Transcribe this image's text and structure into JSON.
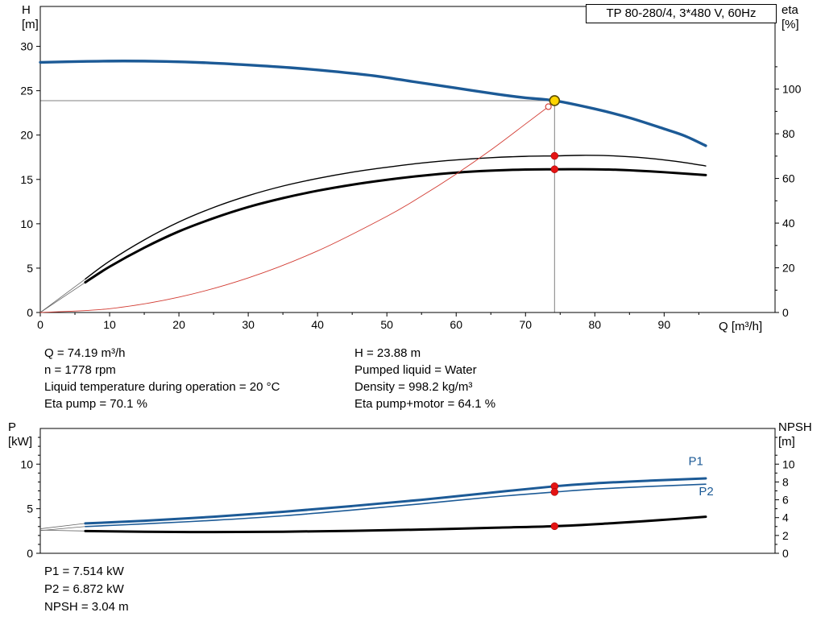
{
  "top_chart": {
    "title": "TP 80-280/4, 3*480 V, 60Hz",
    "y_left_title": "H",
    "y_left_unit": "[m]",
    "y_right_title": "eta",
    "y_right_unit": "[%]",
    "x_axis_label": "Q [m³/h]"
  },
  "bottom_chart": {
    "y_left_title": "P",
    "y_left_unit": "[kW]",
    "y_right_title": "NPSH",
    "y_right_unit": "[m]"
  },
  "info_top": {
    "left": [
      "Q = 74.19 m³/h",
      "n = 1778 rpm",
      "Liquid temperature during operation = 20 °C",
      "Eta pump = 70.1 %"
    ],
    "right": [
      "H = 23.88 m",
      "Pumped liquid = Water",
      "Density = 998.2 kg/m³",
      "Eta pump+motor = 64.1 %"
    ]
  },
  "info_bottom": [
    "P1 = 7.514 kW",
    "P2 = 6.872 kW",
    "NPSH = 3.04 m"
  ],
  "colors": {
    "curve_blue": "#1c5a96",
    "curve_black": "#000000",
    "system_red": "#d23b32",
    "marker_red": "#e41414",
    "duty_yellow": "#ffd400",
    "guide_gray": "#808080"
  },
  "chart_data": [
    {
      "type": "line",
      "title": "TP 80-280/4, 3*480 V, 60Hz",
      "x": {
        "label": "Q [m³/h]",
        "min": 0,
        "max": 106,
        "major_ticks": [
          0,
          10,
          20,
          30,
          40,
          50,
          60,
          70,
          80,
          90
        ],
        "minor_ticks": [
          5,
          15,
          25,
          35,
          45,
          55,
          65,
          75,
          85,
          95
        ]
      },
      "y_left": {
        "label": "H [m]",
        "min": 0,
        "max": 34.5,
        "major_ticks": [
          0,
          5,
          10,
          15,
          20,
          25,
          30
        ]
      },
      "y_right": {
        "label": "eta [%]",
        "min": 0,
        "max": 137,
        "major_ticks": [
          0,
          20,
          40,
          60,
          80,
          100
        ],
        "minor_ticks": [
          10,
          30,
          50,
          70,
          90,
          110
        ]
      },
      "series": [
        {
          "name": "head-curve",
          "axis": "left",
          "color": "curve_blue",
          "width": 3.4,
          "points": [
            [
              0,
              28.2
            ],
            [
              6,
              28.3
            ],
            [
              12,
              28.35
            ],
            [
              18,
              28.3
            ],
            [
              24,
              28.15
            ],
            [
              30,
              27.9
            ],
            [
              36,
              27.6
            ],
            [
              42,
              27.2
            ],
            [
              48,
              26.7
            ],
            [
              54,
              26.0
            ],
            [
              60,
              25.3
            ],
            [
              66,
              24.6
            ],
            [
              70,
              24.2
            ],
            [
              74.19,
              23.88
            ],
            [
              80,
              22.95
            ],
            [
              85,
              21.95
            ],
            [
              90,
              20.7
            ],
            [
              93,
              19.9
            ],
            [
              96,
              18.8
            ]
          ]
        },
        {
          "name": "eta-pump-curve",
          "axis": "right",
          "color": "curve_black",
          "width": 1.4,
          "lead": [
            [
              0,
              0
            ]
          ],
          "points": [
            [
              6.5,
              15
            ],
            [
              10,
              23
            ],
            [
              15,
              32.5
            ],
            [
              20,
              40.5
            ],
            [
              25,
              47
            ],
            [
              30,
              52.3
            ],
            [
              35,
              56.6
            ],
            [
              40,
              60
            ],
            [
              45,
              62.8
            ],
            [
              50,
              65
            ],
            [
              55,
              66.9
            ],
            [
              60,
              68.3
            ],
            [
              65,
              69.3
            ],
            [
              70,
              69.9
            ],
            [
              74.19,
              70.1
            ],
            [
              78,
              70.35
            ],
            [
              82,
              70.2
            ],
            [
              86,
              69.5
            ],
            [
              90,
              68.3
            ],
            [
              93,
              67.1
            ],
            [
              96,
              65.6
            ]
          ]
        },
        {
          "name": "eta-pump-motor-curve",
          "axis": "right",
          "color": "curve_black",
          "width": 3.0,
          "lead": [
            [
              0,
              0
            ]
          ],
          "points": [
            [
              6.5,
              13.5
            ],
            [
              10,
              20.5
            ],
            [
              15,
              29
            ],
            [
              20,
              36.3
            ],
            [
              25,
              42.2
            ],
            [
              30,
              47.2
            ],
            [
              35,
              51.2
            ],
            [
              40,
              54.5
            ],
            [
              45,
              57.2
            ],
            [
              50,
              59.4
            ],
            [
              55,
              61.2
            ],
            [
              60,
              62.6
            ],
            [
              65,
              63.5
            ],
            [
              70,
              64.0
            ],
            [
              74.19,
              64.1
            ],
            [
              78,
              64.15
            ],
            [
              82,
              64.0
            ],
            [
              86,
              63.5
            ],
            [
              90,
              62.8
            ],
            [
              96,
              61.5
            ]
          ]
        },
        {
          "name": "system-curve",
          "axis": "left",
          "color": "system_red",
          "width": 0.9,
          "points": [
            [
              0,
              0
            ],
            [
              10,
              0.43
            ],
            [
              20,
              1.73
            ],
            [
              30,
              3.9
            ],
            [
              40,
              6.94
            ],
            [
              50,
              10.84
            ],
            [
              55,
              13.12
            ],
            [
              60,
              15.61
            ],
            [
              65,
              18.32
            ],
            [
              70,
              21.25
            ],
            [
              73.3,
              23.2
            ]
          ]
        }
      ],
      "guides": [
        {
          "type": "v",
          "x": 74.19,
          "axis": "left",
          "to_value": 23.88
        },
        {
          "type": "h",
          "axis": "left",
          "value": 23.88,
          "to_x": 74.19
        }
      ],
      "markers": [
        {
          "name": "duty-point",
          "axis": "left",
          "x": 74.19,
          "value": 23.88,
          "style": "duty"
        },
        {
          "name": "system-curve-point",
          "axis": "left",
          "x": 73.3,
          "value": 23.2,
          "style": "hollow"
        },
        {
          "name": "eta-pump-point",
          "axis": "right",
          "x": 74.19,
          "value": 70.1,
          "style": "dot"
        },
        {
          "name": "eta-pump-motor-point",
          "axis": "right",
          "x": 74.19,
          "value": 64.1,
          "style": "dot"
        }
      ]
    },
    {
      "type": "line",
      "x": {
        "min": 0,
        "max": 106
      },
      "y_left": {
        "label": "P [kW]",
        "min": 0,
        "max": 14,
        "major_ticks": [
          0,
          5,
          10
        ],
        "minor_ticks": [
          1,
          2,
          3,
          4,
          6,
          7,
          8,
          9,
          11,
          12,
          13
        ]
      },
      "y_right": {
        "label": "NPSH [m]",
        "min": 0,
        "max": 14,
        "major_ticks": [
          0,
          2,
          4,
          6,
          8,
          10
        ],
        "minor_ticks": [
          1,
          3,
          5,
          7,
          9,
          11,
          13
        ]
      },
      "series": [
        {
          "name": "p1-curve",
          "axis": "left",
          "color": "curve_blue",
          "width": 3.0,
          "label": "P1",
          "label_pos": [
            93.5,
            9.9
          ],
          "lead": [
            [
              0,
              2.75
            ]
          ],
          "points": [
            [
              6.5,
              3.35
            ],
            [
              15,
              3.65
            ],
            [
              25,
              4.1
            ],
            [
              35,
              4.65
            ],
            [
              45,
              5.3
            ],
            [
              55,
              6.0
            ],
            [
              65,
              6.8
            ],
            [
              74.19,
              7.514
            ],
            [
              80,
              7.85
            ],
            [
              88,
              8.15
            ],
            [
              96,
              8.4
            ]
          ]
        },
        {
          "name": "p2-curve",
          "axis": "left",
          "color": "curve_blue",
          "width": 1.6,
          "label": "P2",
          "label_pos": [
            95,
            6.5
          ],
          "lead": [
            [
              0,
              2.55
            ]
          ],
          "points": [
            [
              6.5,
              3.0
            ],
            [
              15,
              3.3
            ],
            [
              25,
              3.7
            ],
            [
              35,
              4.2
            ],
            [
              45,
              4.85
            ],
            [
              55,
              5.55
            ],
            [
              65,
              6.3
            ],
            [
              74.19,
              6.872
            ],
            [
              80,
              7.2
            ],
            [
              88,
              7.5
            ],
            [
              96,
              7.75
            ]
          ]
        },
        {
          "name": "npsh-curve",
          "axis": "right",
          "color": "curve_black",
          "width": 3.0,
          "lead": [
            [
              0,
              2.6
            ]
          ],
          "points": [
            [
              6.5,
              2.5
            ],
            [
              15,
              2.42
            ],
            [
              25,
              2.38
            ],
            [
              35,
              2.42
            ],
            [
              45,
              2.52
            ],
            [
              55,
              2.66
            ],
            [
              65,
              2.86
            ],
            [
              74.19,
              3.04
            ],
            [
              82,
              3.35
            ],
            [
              89,
              3.7
            ],
            [
              96,
              4.1
            ]
          ]
        }
      ],
      "guides": [],
      "markers": [
        {
          "name": "p1-point",
          "axis": "left",
          "x": 74.19,
          "value": 7.514,
          "style": "dot"
        },
        {
          "name": "p2-point",
          "axis": "left",
          "x": 74.19,
          "value": 6.872,
          "style": "dot"
        },
        {
          "name": "npsh-point",
          "axis": "right",
          "x": 74.19,
          "value": 3.04,
          "style": "dot"
        }
      ]
    }
  ]
}
